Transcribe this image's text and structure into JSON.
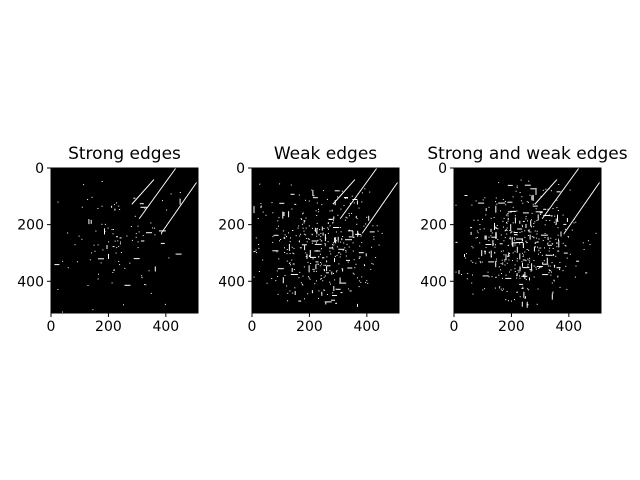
{
  "chart_data": [
    {
      "type": "heatmap",
      "title": "Strong edges",
      "xlabel": "",
      "ylabel": "",
      "xlim": [
        0,
        512
      ],
      "ylim": [
        512,
        0
      ],
      "x_ticks": [
        0,
        200,
        400
      ],
      "y_ticks": [
        0,
        200,
        400
      ],
      "colormap": "gray",
      "density": 0.08
    },
    {
      "type": "heatmap",
      "title": "Weak edges",
      "xlabel": "",
      "ylabel": "",
      "xlim": [
        0,
        512
      ],
      "ylim": [
        512,
        0
      ],
      "x_ticks": [
        0,
        200,
        400
      ],
      "y_ticks": [
        0,
        200,
        400
      ],
      "colormap": "gray",
      "density": 0.28
    },
    {
      "type": "heatmap",
      "title": "Strong and weak edges",
      "xlabel": "",
      "ylabel": "",
      "xlim": [
        0,
        512
      ],
      "ylim": [
        512,
        0
      ],
      "x_ticks": [
        0,
        200,
        400
      ],
      "y_ticks": [
        0,
        200,
        400
      ],
      "colormap": "gray",
      "density": 0.34
    }
  ],
  "colors": {
    "background": "#ffffff",
    "image_background": "#000000",
    "edge": "#ffffff",
    "axis": "#000000"
  }
}
